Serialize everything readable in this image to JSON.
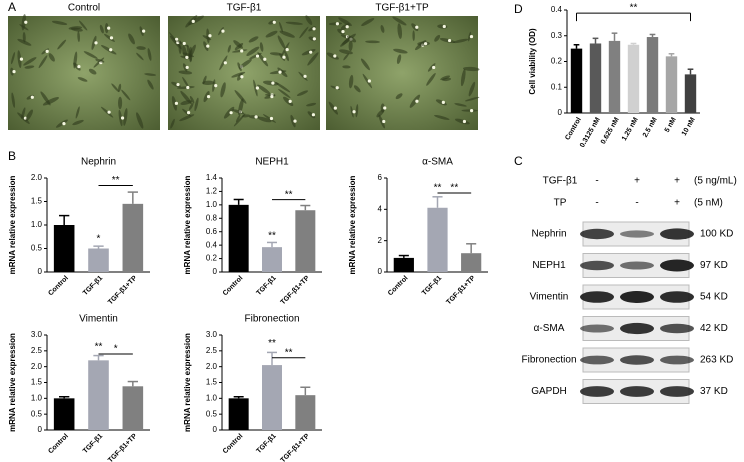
{
  "panel_labels": [
    "A",
    "B",
    "C",
    "D"
  ],
  "microscopy": {
    "titles": [
      "Control",
      "TGF-β1",
      "TGF-β1+TP"
    ]
  },
  "western_blot": {
    "treatments": [
      {
        "name": "TGF-β1",
        "signs": [
          "-",
          "+",
          "+"
        ],
        "dose": "(5 ng/mL)"
      },
      {
        "name": "TP",
        "signs": [
          "-",
          "-",
          "+"
        ],
        "dose": "(5 nM)"
      }
    ],
    "proteins": [
      {
        "name": "Nephrin",
        "size": "100 KD"
      },
      {
        "name": "NEPH1",
        "size": "97 KD"
      },
      {
        "name": "Vimentin",
        "size": "54 KD"
      },
      {
        "name": "α-SMA",
        "size": "42 KD"
      },
      {
        "name": "Fibronection",
        "size": "263 KD"
      },
      {
        "name": "GAPDH",
        "size": "37 KD"
      }
    ]
  },
  "chart_data": [
    {
      "type": "bar",
      "ylabel": "Cell viability (OD)",
      "categories": [
        "Control",
        "0.3125 nM",
        "0.625 nM",
        "1.25 nM",
        "2.5 nM",
        "5 nM",
        "10 nM"
      ],
      "values": [
        0.25,
        0.27,
        0.28,
        0.265,
        0.295,
        0.22,
        0.15
      ],
      "errors": [
        0.015,
        0.02,
        0.03,
        0.005,
        0.01,
        0.01,
        0.02
      ],
      "colors": [
        "#000000",
        "#595959",
        "#808080",
        "#d0d0d0",
        "#7a7a7a",
        "#a6a6a6",
        "#404040"
      ],
      "ylim": [
        0,
        0.4
      ],
      "yticks": [
        0,
        0.1,
        0.2,
        0.3,
        0.4
      ],
      "annotations": [
        "**"
      ]
    },
    {
      "type": "bar",
      "title": "Nephrin",
      "ylabel": "mRNA relative expression",
      "categories": [
        "Control",
        "TGF-β1",
        "TGF-β1+TP"
      ],
      "values": [
        1.0,
        0.5,
        1.45
      ],
      "errors": [
        0.2,
        0.05,
        0.25
      ],
      "colors": [
        "#000000",
        "#a4a7b3",
        "#808080"
      ],
      "ylim": [
        0,
        2
      ],
      "yticks": [
        0,
        0.5,
        {
          "value": 1,
          "label": "1.0"
        },
        1.5,
        {
          "value": 2,
          "label": "2.0"
        }
      ],
      "annotations": [
        "*",
        "**"
      ]
    },
    {
      "type": "bar",
      "title": "NEPH1",
      "ylabel": "mRNA relative expression",
      "categories": [
        "Control",
        "TGF-β1",
        "TGF-β1+TP"
      ],
      "values": [
        1.0,
        0.37,
        0.92
      ],
      "errors": [
        0.08,
        0.07,
        0.07
      ],
      "colors": [
        "#000000",
        "#a4a7b3",
        "#808080"
      ],
      "ylim": [
        0,
        1.4
      ],
      "yticks": [
        0,
        0.2,
        0.4,
        0.6,
        0.8,
        {
          "value": 1,
          "label": "1.0"
        },
        1.2,
        1.4
      ],
      "annotations": [
        "**",
        "**"
      ]
    },
    {
      "type": "bar",
      "title": "α-SMA",
      "ylabel": "mRNA relative expression",
      "categories": [
        "Control",
        "TGF-β1",
        "TGF-β1+TP"
      ],
      "values": [
        0.9,
        4.1,
        1.2
      ],
      "errors": [
        0.15,
        0.7,
        0.6
      ],
      "colors": [
        "#000000",
        "#a4a7b3",
        "#808080"
      ],
      "ylim": [
        0,
        6
      ],
      "yticks": [
        0,
        2,
        4,
        6
      ],
      "annotations": [
        "**",
        "**"
      ]
    },
    {
      "type": "bar",
      "title": "Vimentin",
      "ylabel": "mRNA relative expression",
      "categories": [
        "Control",
        "TGF-β1",
        "TGF-β1+TP"
      ],
      "values": [
        1.0,
        2.2,
        1.38
      ],
      "errors": [
        0.05,
        0.15,
        0.15
      ],
      "colors": [
        "#000000",
        "#a4a7b3",
        "#808080"
      ],
      "ylim": [
        0,
        3
      ],
      "yticks": [
        0,
        0.5,
        {
          "value": 1,
          "label": "1.0"
        },
        1.5,
        {
          "value": 2,
          "label": "2.0"
        },
        2.5,
        {
          "value": 3,
          "label": "3.0"
        }
      ],
      "annotations": [
        "**",
        "*"
      ]
    },
    {
      "type": "bar",
      "title": "Fibronection",
      "ylabel": "mRNA relative expression",
      "categories": [
        "Control",
        "TGF-β1",
        "TGF-β1+TP"
      ],
      "values": [
        1.0,
        2.05,
        1.1
      ],
      "errors": [
        0.05,
        0.4,
        0.25
      ],
      "colors": [
        "#000000",
        "#a4a7b3",
        "#808080"
      ],
      "ylim": [
        0,
        3
      ],
      "yticks": [
        0,
        0.5,
        {
          "value": 1,
          "label": "1.0"
        },
        1.5,
        {
          "value": 2,
          "label": "2.0"
        },
        2.5,
        {
          "value": 3,
          "label": "3.0"
        }
      ],
      "annotations": [
        "**",
        "**"
      ]
    }
  ]
}
